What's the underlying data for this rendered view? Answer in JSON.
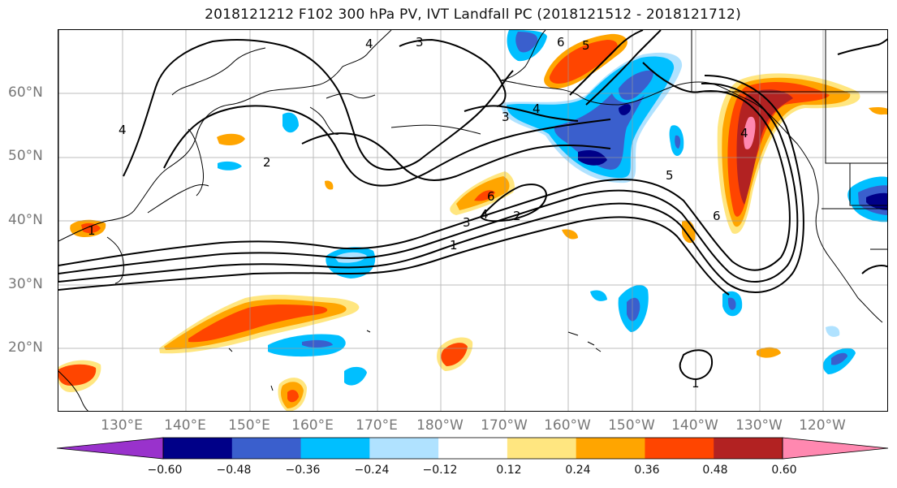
{
  "title": "2018121212 F102 300 hPa PV, IVT Landfall PC (2018121512 - 2018121712)",
  "lat_labels": [
    "60°N",
    "50°N",
    "40°N",
    "30°N",
    "20°N"
  ],
  "lon_labels": [
    "130°E",
    "140°E",
    "150°E",
    "160°E",
    "170°E",
    "180°W",
    "170°W",
    "160°W",
    "150°W",
    "140°W",
    "130°W",
    "120°W"
  ],
  "colorbar": {
    "ticks": [
      "−0.60",
      "−0.48",
      "−0.36",
      "−0.24",
      "−0.12",
      "0.12",
      "0.24",
      "0.36",
      "0.48",
      "0.60"
    ],
    "colors": [
      "#9932cc",
      "#000088",
      "#3a5fcd",
      "#00bfff",
      "#b0e2ff",
      "#ffffff",
      "#ffe680",
      "#ffa500",
      "#ff4500",
      "#b22222",
      "#ff88b0"
    ]
  },
  "contour_labels": [
    "4",
    "3",
    "6",
    "5",
    "4",
    "3",
    "4",
    "2",
    "6",
    "4",
    "3",
    "2",
    "1",
    "5",
    "4",
    "6",
    "1",
    "1"
  ]
}
